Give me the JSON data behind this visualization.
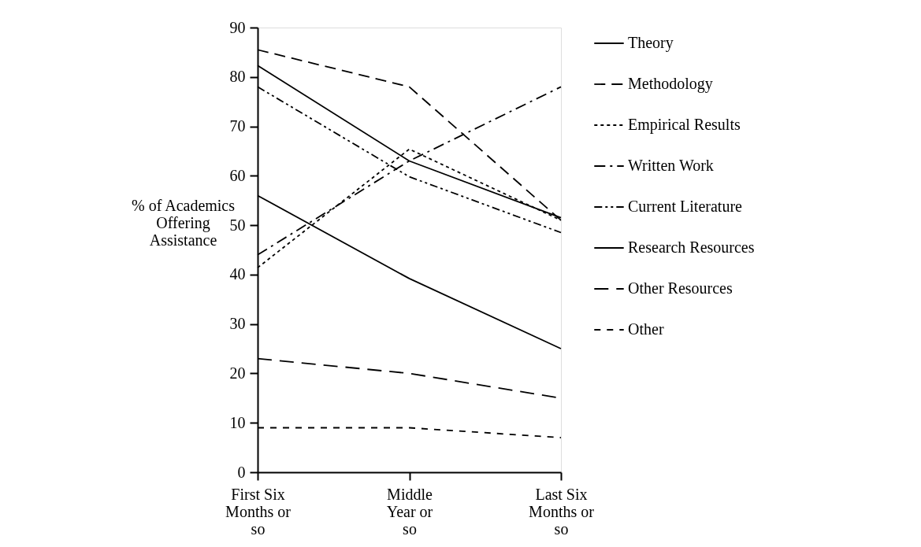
{
  "chart_data": {
    "type": "line",
    "ylabel": "% of Academics Offering Assistance",
    "categories": [
      "First Six Months or so",
      "Middle Year or so",
      "Last Six Months or so"
    ],
    "ylim": [
      0,
      90
    ],
    "yticks": [
      0,
      10,
      20,
      30,
      40,
      50,
      60,
      70,
      80,
      90
    ],
    "grid": false,
    "legend": "right",
    "marker": "none",
    "series": [
      {
        "name": "Theory",
        "color": "#000000",
        "line_style": "solid",
        "values": [
          82.3,
          63,
          51.5
        ]
      },
      {
        "name": "Methodology",
        "color": "#000000",
        "line_style": "dashed",
        "values": [
          85.5,
          78,
          51
        ]
      },
      {
        "name": "Empirical Results",
        "color": "#000000",
        "line_style": "dotted",
        "values": [
          41.4,
          65.4,
          51
        ]
      },
      {
        "name": "Written Work",
        "color": "#000000",
        "line_style": "dashed",
        "values": [
          44,
          63,
          78
        ]
      },
      {
        "name": "Current Literature",
        "color": "#000000",
        "line_style": "dashed",
        "values": [
          78,
          59.8,
          48.5
        ]
      },
      {
        "name": "Research Resources",
        "color": "#000000",
        "line_style": "solid",
        "values": [
          56,
          39.2,
          25
        ]
      },
      {
        "name": "Other Resources",
        "color": "#000000",
        "line_style": "dashed",
        "values": [
          23,
          20,
          15
        ]
      },
      {
        "name": "Other",
        "color": "#000000",
        "line_style": "dashed",
        "values": [
          9,
          9,
          7
        ]
      }
    ]
  }
}
